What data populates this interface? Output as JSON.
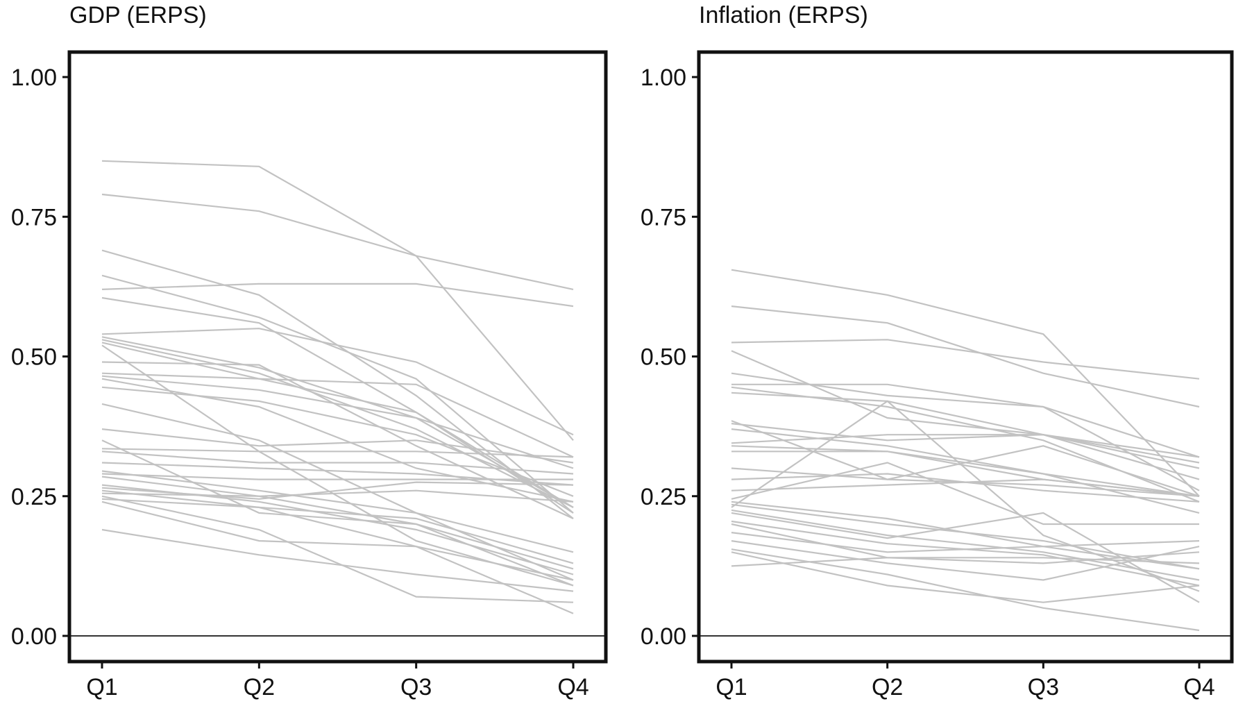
{
  "chart_data": [
    {
      "type": "line",
      "title": "GDP (ERPS)",
      "xlabel": "",
      "ylabel": "",
      "categories": [
        "Q1",
        "Q2",
        "Q3",
        "Q4"
      ],
      "yticks": [
        "0.00",
        "0.25",
        "0.50",
        "0.75",
        "1.00"
      ],
      "ylim": [
        0,
        1.05
      ],
      "grid": false,
      "line_color": "#c2c2c2",
      "series": [
        {
          "values": [
            0.85,
            0.84,
            0.68,
            0.35
          ]
        },
        {
          "values": [
            0.79,
            0.76,
            0.68,
            0.62
          ]
        },
        {
          "values": [
            0.69,
            0.61,
            0.43,
            0.21
          ]
        },
        {
          "values": [
            0.645,
            0.57,
            0.46,
            0.22
          ]
        },
        {
          "values": [
            0.62,
            0.63,
            0.63,
            0.59
          ]
        },
        {
          "values": [
            0.605,
            0.56,
            0.4,
            0.23
          ]
        },
        {
          "values": [
            0.54,
            0.55,
            0.49,
            0.36
          ]
        },
        {
          "values": [
            0.535,
            0.48,
            0.39,
            0.23
          ]
        },
        {
          "values": [
            0.53,
            0.47,
            0.37,
            0.23
          ]
        },
        {
          "values": [
            0.525,
            0.46,
            0.4,
            0.22
          ]
        },
        {
          "values": [
            0.52,
            0.33,
            0.17,
            0.09
          ]
        },
        {
          "values": [
            0.49,
            0.485,
            0.34,
            0.21
          ]
        },
        {
          "values": [
            0.47,
            0.46,
            0.45,
            0.32
          ]
        },
        {
          "values": [
            0.465,
            0.44,
            0.39,
            0.3
          ]
        },
        {
          "values": [
            0.46,
            0.41,
            0.3,
            0.24
          ]
        },
        {
          "values": [
            0.445,
            0.42,
            0.36,
            0.25
          ]
        },
        {
          "values": [
            0.415,
            0.35,
            0.22,
            0.15
          ]
        },
        {
          "values": [
            0.37,
            0.34,
            0.35,
            0.31
          ]
        },
        {
          "values": [
            0.35,
            0.22,
            0.2,
            0.12
          ]
        },
        {
          "values": [
            0.335,
            0.33,
            0.33,
            0.32
          ]
        },
        {
          "values": [
            0.33,
            0.31,
            0.31,
            0.29
          ]
        },
        {
          "values": [
            0.31,
            0.3,
            0.29,
            0.27
          ]
        },
        {
          "values": [
            0.295,
            0.26,
            0.22,
            0.1
          ]
        },
        {
          "values": [
            0.29,
            0.28,
            0.28,
            0.28
          ]
        },
        {
          "values": [
            0.285,
            0.25,
            0.26,
            0.24
          ]
        },
        {
          "values": [
            0.27,
            0.24,
            0.19,
            0.11
          ]
        },
        {
          "values": [
            0.265,
            0.245,
            0.275,
            0.27
          ]
        },
        {
          "values": [
            0.26,
            0.23,
            0.21,
            0.13
          ]
        },
        {
          "values": [
            0.255,
            0.25,
            0.2,
            0.09
          ]
        },
        {
          "values": [
            0.25,
            0.19,
            0.07,
            0.06
          ]
        },
        {
          "values": [
            0.245,
            0.23,
            0.16,
            0.04
          ]
        },
        {
          "values": [
            0.24,
            0.17,
            0.16,
            0.1
          ]
        },
        {
          "values": [
            0.19,
            0.145,
            0.11,
            0.08
          ]
        }
      ]
    },
    {
      "type": "line",
      "title": "Inflation (ERPS)",
      "xlabel": "",
      "ylabel": "",
      "categories": [
        "Q1",
        "Q2",
        "Q3",
        "Q4"
      ],
      "yticks": [
        "0.00",
        "0.25",
        "0.50",
        "0.75",
        "1.00"
      ],
      "ylim": [
        0,
        1.05
      ],
      "grid": false,
      "line_color": "#c2c2c2",
      "series": [
        {
          "values": [
            0.655,
            0.61,
            0.54,
            0.25
          ]
        },
        {
          "values": [
            0.59,
            0.56,
            0.47,
            0.41
          ]
        },
        {
          "values": [
            0.525,
            0.53,
            0.49,
            0.46
          ]
        },
        {
          "values": [
            0.51,
            0.39,
            0.36,
            0.32
          ]
        },
        {
          "values": [
            0.47,
            0.43,
            0.41,
            0.32
          ]
        },
        {
          "values": [
            0.45,
            0.45,
            0.41,
            0.26
          ]
        },
        {
          "values": [
            0.445,
            0.41,
            0.35,
            0.24
          ]
        },
        {
          "values": [
            0.435,
            0.42,
            0.36,
            0.28
          ]
        },
        {
          "values": [
            0.385,
            0.28,
            0.34,
            0.25
          ]
        },
        {
          "values": [
            0.38,
            0.35,
            0.36,
            0.31
          ]
        },
        {
          "values": [
            0.37,
            0.34,
            0.29,
            0.22
          ]
        },
        {
          "values": [
            0.345,
            0.36,
            0.36,
            0.3
          ]
        },
        {
          "values": [
            0.34,
            0.33,
            0.29,
            0.25
          ]
        },
        {
          "values": [
            0.33,
            0.33,
            0.28,
            0.25
          ]
        },
        {
          "values": [
            0.3,
            0.28,
            0.27,
            0.25
          ]
        },
        {
          "values": [
            0.28,
            0.29,
            0.26,
            0.24
          ]
        },
        {
          "values": [
            0.26,
            0.27,
            0.28,
            0.25
          ]
        },
        {
          "values": [
            0.245,
            0.31,
            0.2,
            0.2
          ]
        },
        {
          "values": [
            0.24,
            0.21,
            0.16,
            0.12
          ]
        },
        {
          "values": [
            0.235,
            0.2,
            0.17,
            0.12
          ]
        },
        {
          "values": [
            0.23,
            0.42,
            0.18,
            0.08
          ]
        },
        {
          "values": [
            0.225,
            0.18,
            0.15,
            0.1
          ]
        },
        {
          "values": [
            0.22,
            0.175,
            0.22,
            0.06
          ]
        },
        {
          "values": [
            0.205,
            0.165,
            0.145,
            0.09
          ]
        },
        {
          "values": [
            0.2,
            0.14,
            0.13,
            0.15
          ]
        },
        {
          "values": [
            0.185,
            0.15,
            0.16,
            0.17
          ]
        },
        {
          "values": [
            0.17,
            0.13,
            0.1,
            0.16
          ]
        },
        {
          "values": [
            0.155,
            0.11,
            0.05,
            0.01
          ]
        },
        {
          "values": [
            0.15,
            0.09,
            0.06,
            0.09
          ]
        },
        {
          "values": [
            0.125,
            0.14,
            0.14,
            0.13
          ]
        }
      ]
    }
  ]
}
